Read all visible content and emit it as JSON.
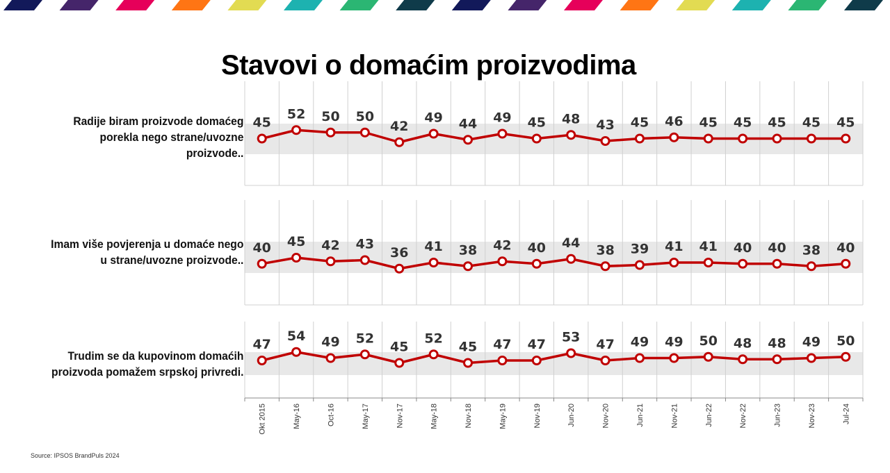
{
  "header": {
    "stripe_colors": [
      "#12195a",
      "#45256a",
      "#e6005a",
      "#ff7514",
      "#e2db52",
      "#1db2b0",
      "#2bb673",
      "#0f3b4a"
    ]
  },
  "title": "Stavovi o domaćim proizvodima",
  "source": "Source: IPSOS BrandPuls  2024",
  "colors": {
    "line": "#c00000",
    "band": "#e8e8e8",
    "grid": "#d0d0d0",
    "value_label": "#333333"
  },
  "chart_data": {
    "type": "line",
    "title": "Stavovi o domaćim proizvodima",
    "x": [
      "Okt 2015",
      "May-16",
      "Oct-16",
      "May-17",
      "Nov-17",
      "May-18",
      "Nov-18",
      "May-19",
      "Nov-19",
      "Jun-20",
      "Nov-20",
      "Jun-21",
      "Nov-21",
      "Jun-22",
      "Nov-22",
      "Jun-23",
      "Nov-23",
      "Jul-24"
    ],
    "xlabel": "",
    "ylabel": "",
    "grid": true,
    "legend": "none",
    "series": [
      {
        "name": "Radije biram proizvode domaćeg porekla nego strane/uvozne proizvode..",
        "label_lines": [
          "Radije biram proizvode domaćeg",
          "porekla nego strane/uvozne",
          "proizvode.."
        ],
        "values": [
          45,
          52,
          50,
          50,
          42,
          49,
          44,
          49,
          45,
          48,
          43,
          45,
          46,
          45,
          45,
          45,
          45,
          45
        ]
      },
      {
        "name": "Imam više povjerenja u domaće nego u strane/uvozne proizvode..",
        "label_lines": [
          "Imam više povjerenja u domaće nego",
          "u strane/uvozne proizvode.."
        ],
        "values": [
          40,
          45,
          42,
          43,
          36,
          41,
          38,
          42,
          40,
          44,
          38,
          39,
          41,
          41,
          40,
          40,
          38,
          40
        ]
      },
      {
        "name": "Trudim se da kupovinom domaćih proizvoda pomažem srpskoj privredi.",
        "label_lines": [
          "Trudim se da kupovinom domaćih",
          "proizvoda pomažem srpskoj privredi."
        ],
        "values": [
          47,
          54,
          49,
          52,
          45,
          52,
          45,
          47,
          47,
          53,
          47,
          49,
          49,
          50,
          48,
          48,
          49,
          50
        ]
      }
    ]
  }
}
